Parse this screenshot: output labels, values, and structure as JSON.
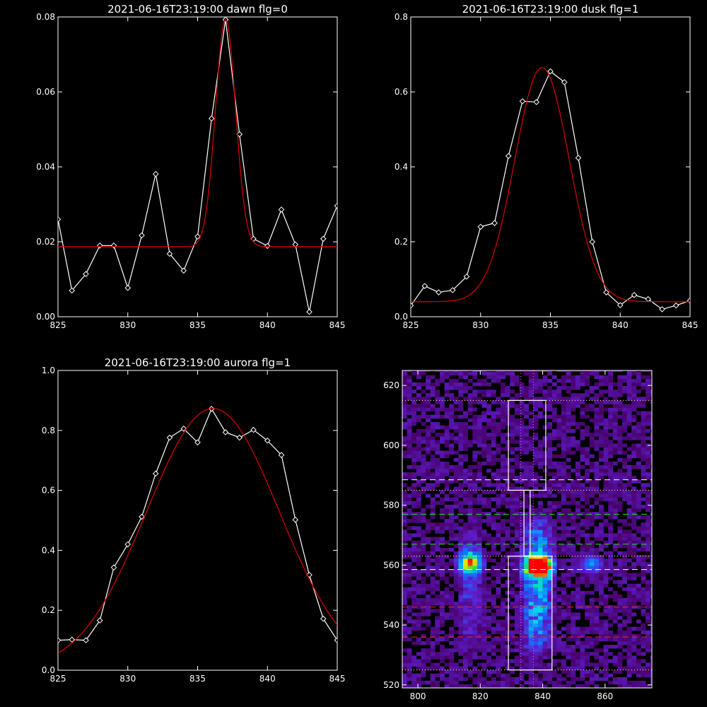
{
  "chart_data": [
    {
      "type": "line",
      "title": "2021-06-16T23:19:00 dawn flg=0",
      "xlim": [
        825,
        845
      ],
      "ylim": [
        0,
        0.08
      ],
      "xticks": [
        "825",
        "830",
        "835",
        "840",
        "845"
      ],
      "yticks": [
        "0.00",
        "0.02",
        "0.04",
        "0.06",
        "0.08"
      ],
      "series": [
        {
          "color": "#ffffff",
          "markers": "diamond",
          "x": [
            825,
            826,
            827,
            828,
            829,
            830,
            831,
            832,
            833,
            834,
            835,
            836,
            837,
            838,
            839,
            840,
            841,
            842,
            843,
            844,
            845
          ],
          "y": [
            0.026,
            0.007,
            0.0114,
            0.019,
            0.019,
            0.0077,
            0.0217,
            0.0381,
            0.0168,
            0.0123,
            0.0214,
            0.0529,
            0.0793,
            0.0487,
            0.0208,
            0.0189,
            0.0286,
            0.0193,
            0.0013,
            0.0208,
            0.0296
          ]
        },
        {
          "color": "#e00000",
          "fit": "gaussian",
          "baseline": 0.0187,
          "amplitude": 0.0606,
          "center": 837.0,
          "sigma": 0.72
        }
      ]
    },
    {
      "type": "line",
      "title": "2021-06-16T23:19:00 dusk flg=1",
      "xlim": [
        825,
        845
      ],
      "ylim": [
        0,
        0.8
      ],
      "xticks": [
        "825",
        "830",
        "835",
        "840",
        "845"
      ],
      "yticks": [
        "0.0",
        "0.2",
        "0.4",
        "0.6",
        "0.8"
      ],
      "series": [
        {
          "color": "#ffffff",
          "markers": "diamond",
          "x": [
            825,
            826,
            827,
            828,
            829,
            830,
            831,
            832,
            833,
            834,
            835,
            836,
            837,
            838,
            839,
            840,
            841,
            842,
            843,
            844,
            845
          ],
          "y": [
            0.03,
            0.082,
            0.065,
            0.071,
            0.107,
            0.24,
            0.25,
            0.429,
            0.575,
            0.573,
            0.655,
            0.626,
            0.424,
            0.2,
            0.065,
            0.031,
            0.058,
            0.047,
            0.02,
            0.03,
            0.043
          ]
        },
        {
          "color": "#e00000",
          "fit": "gaussian",
          "baseline": 0.04,
          "amplitude": 0.625,
          "center": 834.4,
          "sigma": 1.95
        }
      ]
    },
    {
      "type": "line",
      "title": "2021-06-16T23:19:00 aurora flg=1",
      "xlim": [
        825,
        845
      ],
      "ylim": [
        0,
        1.0
      ],
      "xticks": [
        "825",
        "830",
        "835",
        "840",
        "845"
      ],
      "yticks": [
        "0.0",
        "0.2",
        "0.4",
        "0.6",
        "0.8",
        "1.0"
      ],
      "series": [
        {
          "color": "#ffffff",
          "markers": "diamond",
          "x": [
            825,
            826,
            827,
            828,
            829,
            830,
            831,
            832,
            833,
            834,
            835,
            836,
            837,
            838,
            839,
            840,
            841,
            842,
            843,
            844,
            845
          ],
          "y": [
            0.1,
            0.102,
            0.1,
            0.166,
            0.343,
            0.42,
            0.512,
            0.656,
            0.776,
            0.806,
            0.76,
            0.872,
            0.794,
            0.776,
            0.802,
            0.766,
            0.718,
            0.502,
            0.318,
            0.172,
            0.1
          ]
        },
        {
          "color": "#e00000",
          "fit": "gaussian",
          "baseline": 0,
          "amplitude": 0.873,
          "center": 836.1,
          "sigma": 4.75
        }
      ]
    },
    {
      "type": "heatmap",
      "title": "",
      "xlim": [
        795,
        875
      ],
      "ylim": [
        519,
        625
      ],
      "xticks": [
        "800",
        "820",
        "840",
        "860"
      ],
      "yticks": [
        "520",
        "540",
        "560",
        "580",
        "600",
        "620"
      ],
      "colormap": "black-purple-blue-cyan-green-yellow-red",
      "intensity_features": [
        {
          "x_range": [
            810,
            822
          ],
          "y_range": [
            528,
            577
          ],
          "peak": 0.65,
          "peak_at": [
            816,
            560
          ]
        },
        {
          "x_range": [
            830,
            845
          ],
          "y_range": [
            525,
            580
          ],
          "peak": 1.0,
          "peak_at": [
            838,
            559
          ]
        },
        {
          "x_range": [
            847,
            862
          ],
          "y_range": [
            555,
            563
          ],
          "peak": 0.35,
          "peak_at": [
            855,
            560
          ]
        }
      ],
      "overlays": {
        "boxes": [
          {
            "x": [
              829,
              841
            ],
            "y": [
              585,
              615
            ],
            "color": "#ffffff"
          },
          {
            "x": [
              829,
              843
            ],
            "y": [
              525,
              563
            ],
            "color": "#ffffff"
          }
        ],
        "vertical_band": {
          "x": [
            834,
            836
          ],
          "y": [
            563,
            585
          ],
          "color": "#ffffff"
        },
        "dotted_vertical": [
          {
            "x": 833,
            "color": "#ff66ff"
          },
          {
            "x": 837,
            "color": "#ff66ff"
          }
        ],
        "dotted_horizontal": [
          {
            "y": 615,
            "color": "#ffff66"
          },
          {
            "y": 585,
            "color": "#ffff66"
          },
          {
            "y": 563,
            "color": "#ffff66"
          },
          {
            "y": 525,
            "color": "#ffff66"
          }
        ],
        "dashed_white": [
          588.5,
          558.5
        ],
        "dashed_green": [
          577,
          567
        ],
        "dashed_red": [
          546,
          536
        ]
      }
    }
  ]
}
